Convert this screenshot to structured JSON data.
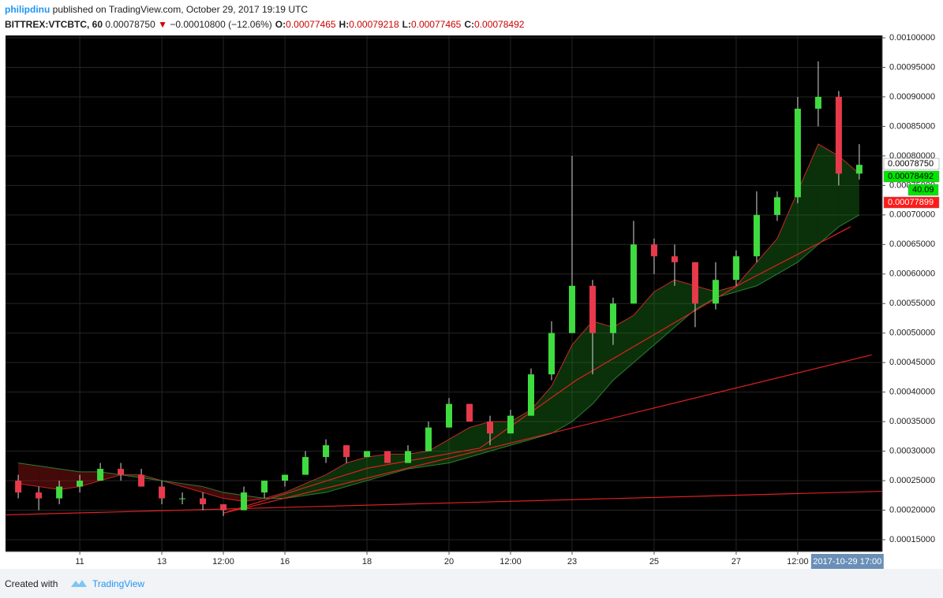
{
  "header": {
    "author": "philipdinu",
    "published": "published on TradingView.com, October 29, 2017 19:19 UTC",
    "symbol": "BITTREX:VTCBTC, 60",
    "last": "0.00078750",
    "arrow": "▼",
    "change": "−0.00010800 (−12.06%)",
    "ohlc": [
      {
        "key": "O:",
        "value": "0.00077465"
      },
      {
        "key": "H:",
        "value": "0.00079218"
      },
      {
        "key": "L:",
        "value": "0.00077465"
      },
      {
        "key": "C:",
        "value": "0.00078492"
      }
    ]
  },
  "footer": {
    "created": "Created with",
    "brand": "TradingView"
  },
  "chart_data": {
    "type": "candlestick",
    "x": [
      9.5,
      10,
      10.5,
      11,
      11.5,
      12,
      12.5,
      13,
      13.5,
      14,
      14.5,
      15,
      15.5,
      16,
      16.5,
      17,
      17.5,
      18,
      18.5,
      19,
      19.5,
      20,
      20.5,
      21,
      21.5,
      22,
      22.5,
      23,
      23.5,
      24,
      24.5,
      25,
      25.5,
      26,
      26.5,
      27,
      27.5,
      28,
      28.5,
      29,
      29.5,
      30
    ],
    "open": [
      0.00025,
      0.00023,
      0.00022,
      0.00024,
      0.00025,
      0.00027,
      0.00026,
      0.00024,
      0.00022,
      0.00022,
      0.00021,
      0.0002,
      0.00023,
      0.00025,
      0.00026,
      0.00029,
      0.00031,
      0.00029,
      0.0003,
      0.00028,
      0.0003,
      0.00034,
      0.00038,
      0.00035,
      0.00033,
      0.00036,
      0.00043,
      0.0005,
      0.00058,
      0.0005,
      0.00055,
      0.00065,
      0.00063,
      0.00062,
      0.00055,
      0.00059,
      0.00063,
      0.0007,
      0.00073,
      0.00088,
      0.0009,
      0.00077
    ],
    "high": [
      0.00026,
      0.00024,
      0.00025,
      0.00026,
      0.00028,
      0.00028,
      0.00027,
      0.00025,
      0.00023,
      0.00023,
      0.00021,
      0.00024,
      0.00025,
      0.00026,
      0.0003,
      0.00032,
      0.00031,
      0.0003,
      0.0003,
      0.00031,
      0.00035,
      0.00039,
      0.00038,
      0.00036,
      0.00037,
      0.00044,
      0.00052,
      0.0008,
      0.00059,
      0.00056,
      0.00069,
      0.00066,
      0.00065,
      0.00062,
      0.00062,
      0.00064,
      0.00074,
      0.00074,
      0.0009,
      0.00096,
      0.00091,
      0.00082
    ],
    "low": [
      0.00022,
      0.0002,
      0.00021,
      0.00023,
      0.00025,
      0.00025,
      0.00024,
      0.00021,
      0.00021,
      0.0002,
      0.00019,
      0.0002,
      0.00022,
      0.00024,
      0.00026,
      0.00028,
      0.00028,
      0.00029,
      0.00028,
      0.00028,
      0.0003,
      0.00034,
      0.00035,
      0.00031,
      0.00033,
      0.00036,
      0.00042,
      0.0005,
      0.00043,
      0.00048,
      0.00055,
      0.0006,
      0.00058,
      0.00051,
      0.00054,
      0.00058,
      0.00062,
      0.00069,
      0.00072,
      0.00085,
      0.00075,
      0.00076
    ],
    "close": [
      0.00023,
      0.00022,
      0.00024,
      0.00025,
      0.00027,
      0.00026,
      0.00024,
      0.00022,
      0.00022,
      0.00021,
      0.0002,
      0.00023,
      0.00025,
      0.00026,
      0.00029,
      0.00031,
      0.00029,
      0.0003,
      0.00028,
      0.0003,
      0.00034,
      0.00038,
      0.00035,
      0.00033,
      0.00036,
      0.00043,
      0.0005,
      0.00058,
      0.0005,
      0.00055,
      0.00065,
      0.00063,
      0.00062,
      0.00055,
      0.00059,
      0.00063,
      0.0007,
      0.00073,
      0.00088,
      0.0009,
      0.00077,
      0.00078492
    ],
    "ma_fast": [
      0.000245,
      0.00024,
      0.000235,
      0.00024,
      0.00025,
      0.00026,
      0.00026,
      0.00025,
      0.00024,
      0.00023,
      0.00022,
      0.000215,
      0.00022,
      0.00023,
      0.000245,
      0.00026,
      0.00028,
      0.00029,
      0.000295,
      0.000295,
      0.0003,
      0.00032,
      0.00034,
      0.00035,
      0.00035,
      0.00037,
      0.00041,
      0.00048,
      0.00052,
      0.00051,
      0.00053,
      0.00057,
      0.00059,
      0.00058,
      0.00057,
      0.00058,
      0.00062,
      0.00066,
      0.00074,
      0.00082,
      0.0008,
      0.00077
    ],
    "ma_slow": [
      0.00028,
      0.000275,
      0.00027,
      0.000265,
      0.000265,
      0.00026,
      0.000255,
      0.00025,
      0.000245,
      0.00024,
      0.00023,
      0.000225,
      0.00022,
      0.00022,
      0.000225,
      0.00023,
      0.00024,
      0.00025,
      0.00026,
      0.00027,
      0.000275,
      0.00028,
      0.00029,
      0.0003,
      0.00031,
      0.00032,
      0.00033,
      0.00035,
      0.00038,
      0.00042,
      0.00045,
      0.00048,
      0.00051,
      0.00054,
      0.00056,
      0.00057,
      0.00058,
      0.0006,
      0.00062,
      0.00065,
      0.00068,
      0.0007
    ],
    "trendlines": [
      {
        "x": [
          9.2,
          30.56
        ],
        "y": [
          0.000192,
          0.000232
        ]
      },
      {
        "x": [
          14.5,
          30.3
        ],
        "y": [
          0.000195,
          0.000463
        ]
      },
      {
        "x": [
          14.5,
          18,
          20.75,
          23.1,
          27.13,
          29.79
        ],
        "y": [
          0.000195,
          0.000271,
          0.000305,
          0.00042,
          0.000584,
          0.00068
        ]
      }
    ],
    "colors": {
      "up": "#3fdc3f",
      "down": "#e8394a",
      "wick": "#d8d8d8",
      "ma_fast": "#c62828",
      "ma_slow": "#2e7d32",
      "trendline": "#e02020",
      "background": "#000000",
      "grid": "#262626"
    },
    "grid": true,
    "xlim": [
      9.19,
      30.56
    ],
    "ylim": [
      0.00013,
      0.001004
    ],
    "xticks": [
      11,
      13,
      {
        "value": 14.5,
        "label": "12:00"
      },
      16,
      18,
      20,
      {
        "value": 21.5,
        "label": "12:00"
      },
      23,
      25,
      27,
      {
        "value": 28.5,
        "label": "12:00"
      }
    ],
    "yticks": [
      {
        "value": 0.00015,
        "label": "0.00015000"
      },
      {
        "value": 0.0002,
        "label": "0.00020000"
      },
      {
        "value": 0.00025,
        "label": "0.00025000"
      },
      {
        "value": 0.0003,
        "label": "0.00030000"
      },
      {
        "value": 0.00035,
        "label": "0.00035000"
      },
      {
        "value": 0.0004,
        "label": "0.00040000"
      },
      {
        "value": 0.00045,
        "label": "0.00045000"
      },
      {
        "value": 0.0005,
        "label": "0.00050000"
      },
      {
        "value": 0.00055,
        "label": "0.00055000"
      },
      {
        "value": 0.0006,
        "label": "0.00060000"
      },
      {
        "value": 0.00065,
        "label": "0.00065000"
      },
      {
        "value": 0.0007,
        "label": "0.00070000"
      },
      {
        "value": 0.00075,
        "label": "0.00075000"
      },
      {
        "value": 0.0008,
        "label": "0.00080000"
      },
      {
        "value": 0.00085,
        "label": "0.00085000"
      },
      {
        "value": 0.0009,
        "label": "0.00090000"
      },
      {
        "value": 0.00095,
        "label": "0.00095000"
      },
      {
        "value": 0.001,
        "label": "0.00100000"
      }
    ],
    "cursor": {
      "x": 29.71,
      "label": "2017-10-29 17:00"
    },
    "price_labels": [
      {
        "label": "0.00078750",
        "color": "#ffffff",
        "text_color": "#000000"
      },
      {
        "label": "0.00078492",
        "color": "#00e600",
        "text_color": "#000000"
      },
      {
        "label": "40.09",
        "color": "#00e600",
        "text_color": "#000000"
      },
      {
        "label": "0.00077899",
        "color": "#ff1a1a",
        "text_color": "#ffffff"
      }
    ]
  }
}
